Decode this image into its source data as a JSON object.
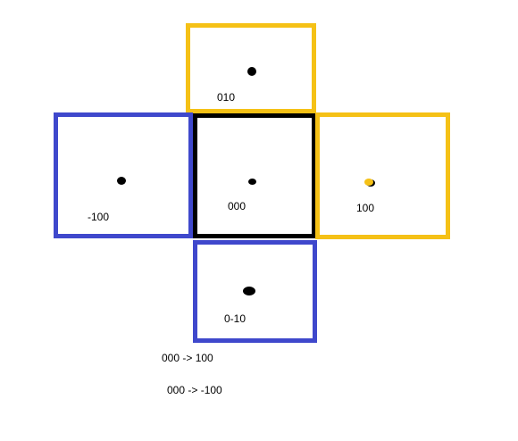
{
  "cells": {
    "top": {
      "label": "010",
      "color": "#f5c116"
    },
    "left": {
      "label": "-100",
      "color": "#3f48cc"
    },
    "center": {
      "label": "000",
      "color": "#000000"
    },
    "right": {
      "label": "100",
      "color": "#f5c116"
    },
    "bottom": {
      "label": "0-10",
      "color": "#3f48cc"
    }
  },
  "notes": [
    "000 -> 100",
    "000 -> -100"
  ]
}
